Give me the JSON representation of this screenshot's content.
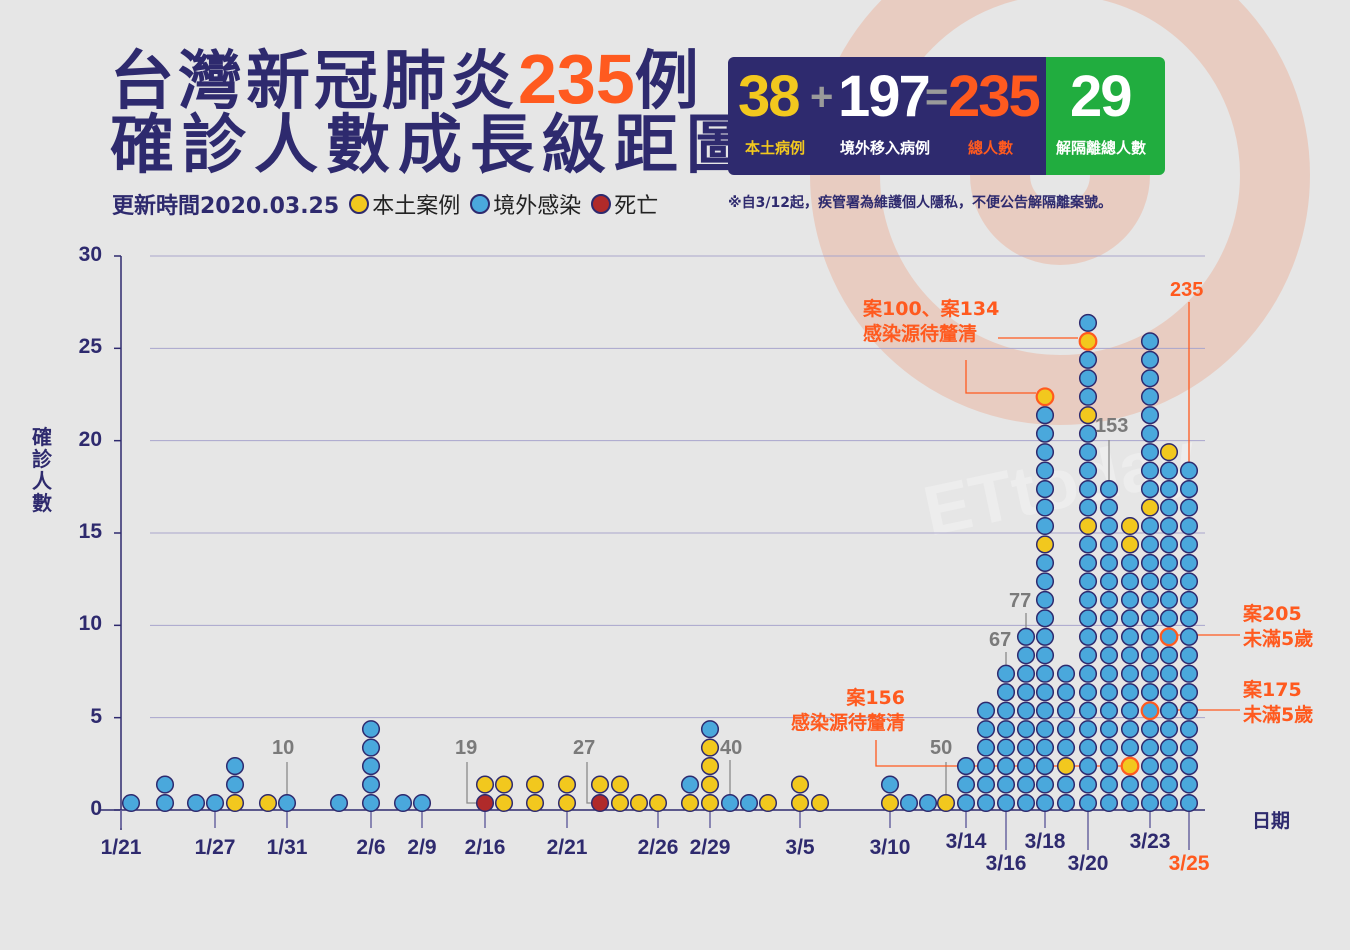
{
  "title": {
    "line1_prefix": "台灣新冠肺炎",
    "line1_number": "235",
    "line1_suffix": "例",
    "line2": "確診人數成長級距圖"
  },
  "subtitle": {
    "updated": "更新時間2020.03.25"
  },
  "legend": [
    {
      "code": "L",
      "label": "本土案例",
      "color": "#f2c81e"
    },
    {
      "code": "I",
      "label": "境外感染",
      "color": "#4aa8dc"
    },
    {
      "code": "D",
      "label": "死亡",
      "color": "#b02a2a"
    }
  ],
  "stats": {
    "local": {
      "value": "38",
      "label": "本土病例",
      "color": "#f2c81e"
    },
    "plus": "+",
    "imported": {
      "value": "197",
      "label": "境外移入病例",
      "color": "#ffffff"
    },
    "equals": "=",
    "total": {
      "value": "235",
      "label": "總人數",
      "color": "#ff5a1f"
    },
    "released": {
      "value": "29",
      "label": "解隔離總人數",
      "color": "#21ad3f"
    }
  },
  "note": "※自3/12起，疾管署為維護個人隱私，不便公告解隔離案號。",
  "watermark": "ETtoday新聞雲",
  "chart_data": {
    "type": "dot-stack",
    "ylabel": "確診人數",
    "xlabel": "日期",
    "ylim": [
      0,
      30
    ],
    "yticks": [
      "0",
      "5",
      "10",
      "15",
      "20",
      "25",
      "30"
    ],
    "grid": true,
    "xticks": [
      "1/21",
      "1/27",
      "1/31",
      "2/6",
      "2/9",
      "2/16",
      "2/21",
      "2/26",
      "2/29",
      "3/5",
      "3/10",
      "3/14",
      "3/16",
      "3/18",
      "3/20",
      "3/23",
      "3/25"
    ],
    "columns": [
      {
        "date": "1/21",
        "stack": "I"
      },
      {
        "date": "1/24",
        "stack": "II"
      },
      {
        "date": "1/26",
        "stack": "I"
      },
      {
        "date": "1/27",
        "stack": "I"
      },
      {
        "date": "1/28",
        "stack": "LII"
      },
      {
        "date": "1/30",
        "stack": "L"
      },
      {
        "date": "1/31",
        "stack": "I"
      },
      {
        "date": "2/4",
        "stack": "I"
      },
      {
        "date": "2/6",
        "stack": "IIIII"
      },
      {
        "date": "2/8",
        "stack": "I"
      },
      {
        "date": "2/9",
        "stack": "I"
      },
      {
        "date": "2/16",
        "stack": "DL"
      },
      {
        "date": "2/17",
        "stack": "LL"
      },
      {
        "date": "2/19",
        "stack": "LL"
      },
      {
        "date": "2/21",
        "stack": "LL"
      },
      {
        "date": "2/22",
        "stack": "DL"
      },
      {
        "date": "2/24",
        "stack": "LL"
      },
      {
        "date": "2/25",
        "stack": "L"
      },
      {
        "date": "2/26",
        "stack": "L"
      },
      {
        "date": "2/28",
        "stack": "LI"
      },
      {
        "date": "2/29",
        "stack": "LLLLI"
      },
      {
        "date": "3/1",
        "stack": "I"
      },
      {
        "date": "3/2",
        "stack": "I"
      },
      {
        "date": "3/3",
        "stack": "L"
      },
      {
        "date": "3/5",
        "stack": "LL"
      },
      {
        "date": "3/6",
        "stack": "L"
      },
      {
        "date": "3/10",
        "stack": "LI"
      },
      {
        "date": "3/11",
        "stack": "I"
      },
      {
        "date": "3/12",
        "stack": "I"
      },
      {
        "date": "3/13",
        "stack": "L"
      },
      {
        "date": "3/14",
        "stack": "III"
      },
      {
        "date": "3/15",
        "stack": "IIIIII"
      },
      {
        "date": "3/16",
        "stack": "IIIIIIII"
      },
      {
        "date": "3/17",
        "stack": "IIIIIIIIII"
      },
      {
        "date": "3/18",
        "stack": "IIIIIIIIIIIIIILIIIIIIIL"
      },
      {
        "date": "3/19",
        "stack": "IILIIIII"
      },
      {
        "date": "3/20",
        "stack": "IIIIIIIIIIIIIIILIIIIILIIILI"
      },
      {
        "date": "3/21",
        "stack": "IIIIIIIIIIIIIIIIII"
      },
      {
        "date": "3/22",
        "stack": "IILIIIIIIIIIIILL"
      },
      {
        "date": "3/23",
        "stack": "IIIIIIIIIIIIIIIILIIIIIIIII"
      },
      {
        "date": "3/24",
        "stack": "IIIIIIIIIIIIIIIIIIIL"
      },
      {
        "date": "3/25",
        "stack": "IIIIIIIIIIIIIIIIIII"
      }
    ],
    "cumulative_labels": [
      "10",
      "19",
      "27",
      "40",
      "50",
      "67",
      "77",
      "153",
      "235"
    ],
    "highlighted_cases": [
      100,
      134,
      156,
      175,
      205
    ],
    "annotations": [
      {
        "line1": "案100、案134",
        "line2": "感染源待釐清"
      },
      {
        "line1": "案156",
        "line2": "感染源待釐清"
      },
      {
        "line1": "案205",
        "line2": "未滿5歲"
      },
      {
        "line1": "案175",
        "line2": "未滿5歲"
      }
    ]
  }
}
